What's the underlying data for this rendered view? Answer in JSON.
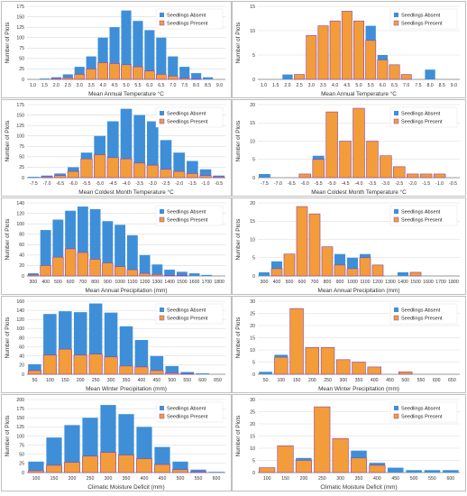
{
  "colors": {
    "absent": "#3f8fd8",
    "present": "#f39c3a",
    "present_stroke": "#8e44ad",
    "grid": "#d9d9d9"
  },
  "chart_data": [
    {
      "type": "bar",
      "ylabel": "Number of Plots",
      "xlabel": "Mean Annual Temperature °C",
      "ylim": [
        0,
        175
      ],
      "yticks": [
        0,
        25,
        50,
        75,
        100,
        125,
        150,
        175
      ],
      "legend_position": "top-right",
      "categories": [
        "1.0",
        "1.5",
        "2.0",
        "2.5",
        "3.0",
        "3.5",
        "4.0",
        "4.5",
        "5.0",
        "5.5",
        "6.0",
        "6.5",
        "7.0",
        "7.5",
        "8.0",
        "8.5",
        "9.0"
      ],
      "series": [
        {
          "name": "Seedlings Absent",
          "values": [
            0,
            2,
            5,
            12,
            30,
            55,
            100,
            125,
            165,
            140,
            118,
            100,
            55,
            30,
            15,
            5,
            0
          ]
        },
        {
          "name": "Seedlings Present",
          "values": [
            0,
            0,
            2,
            4,
            12,
            25,
            40,
            38,
            35,
            30,
            20,
            12,
            8,
            3,
            1,
            0,
            0
          ]
        }
      ]
    },
    {
      "type": "bar",
      "ylabel": "Number of Plots",
      "xlabel": "Mean Annual Temperature °C",
      "ylim": [
        0,
        15
      ],
      "yticks": [
        0,
        5,
        10,
        15
      ],
      "legend_position": "top-right",
      "categories": [
        "1.0",
        "1.5",
        "2.0",
        "2.5",
        "3.0",
        "3.5",
        "4.0",
        "4.5",
        "5.0",
        "5.5",
        "6.0",
        "6.5",
        "7.0",
        "7.5",
        "8.0",
        "8.5",
        "9.0"
      ],
      "series": [
        {
          "name": "Seedlings Absent",
          "values": [
            0,
            0,
            1,
            1,
            3,
            5,
            11,
            12,
            10,
            11,
            5,
            3,
            1,
            0,
            2,
            0,
            0
          ]
        },
        {
          "name": "Seedlings Present",
          "values": [
            0,
            0,
            0,
            1,
            9,
            11,
            12,
            14,
            12,
            8,
            4,
            3,
            1,
            0,
            0,
            0,
            0
          ]
        }
      ]
    },
    {
      "type": "bar",
      "ylabel": "Number of Plots",
      "xlabel": "Mean Coldest Month Temperature °C",
      "ylim": [
        0,
        175
      ],
      "yticks": [
        0,
        25,
        50,
        75,
        100,
        125,
        150,
        175
      ],
      "legend_position": "top-right",
      "categories": [
        "-7.5",
        "-7.0",
        "-6.5",
        "-6.0",
        "-5.5",
        "-5.0",
        "-4.5",
        "-4.0",
        "-3.5",
        "-3.0",
        "-2.5",
        "-2.0",
        "-1.5",
        "-1.0",
        "-0.5"
      ],
      "series": [
        {
          "name": "Seedlings Absent",
          "values": [
            2,
            5,
            10,
            25,
            60,
            100,
            135,
            165,
            150,
            135,
            90,
            60,
            40,
            20,
            5
          ]
        },
        {
          "name": "Seedlings Present",
          "values": [
            0,
            2,
            5,
            15,
            45,
            55,
            48,
            45,
            35,
            30,
            20,
            15,
            10,
            5,
            2
          ]
        }
      ]
    },
    {
      "type": "bar",
      "ylabel": "Number of Plots",
      "xlabel": "Mean Coldest Month Temperature °C",
      "ylim": [
        0,
        20
      ],
      "yticks": [
        0,
        5,
        10,
        15,
        20
      ],
      "legend_position": "top-right",
      "categories": [
        "-7.5",
        "-7.0",
        "-6.5",
        "-6.0",
        "-5.5",
        "-5.0",
        "-4.5",
        "-4.0",
        "-3.5",
        "-3.0",
        "-2.5",
        "-2.0",
        "-1.5",
        "-1.0",
        "-0.5"
      ],
      "series": [
        {
          "name": "Seedlings Absent",
          "values": [
            1,
            0,
            0,
            1,
            6,
            14,
            9,
            16,
            9,
            5,
            3,
            1,
            1,
            1,
            0
          ]
        },
        {
          "name": "Seedlings Present",
          "values": [
            0,
            0,
            0,
            1,
            5,
            18,
            10,
            19,
            10,
            6,
            3,
            1,
            1,
            1,
            0
          ]
        }
      ]
    },
    {
      "type": "bar",
      "ylabel": "Number of Plots",
      "xlabel": "Mean Annual Precipitation (mm)",
      "ylim": [
        0,
        140
      ],
      "yticks": [
        0,
        20,
        40,
        60,
        80,
        100,
        120,
        140
      ],
      "legend_position": "top-right",
      "categories": [
        "300",
        "400",
        "500",
        "600",
        "700",
        "800",
        "900",
        "1000",
        "1100",
        "1200",
        "1300",
        "1400",
        "1500",
        "1600",
        "1700",
        "1800"
      ],
      "series": [
        {
          "name": "Seedlings Absent",
          "values": [
            5,
            88,
            108,
            125,
            133,
            128,
            105,
            98,
            78,
            40,
            22,
            12,
            8,
            5,
            2,
            0
          ]
        },
        {
          "name": "Seedlings Present",
          "values": [
            2,
            20,
            36,
            52,
            45,
            32,
            25,
            18,
            12,
            5,
            3,
            1,
            1,
            0,
            0,
            0
          ]
        }
      ]
    },
    {
      "type": "bar",
      "ylabel": "Number of Plots",
      "xlabel": "Mean Annual Precipitation (mm)",
      "ylim": [
        0,
        20
      ],
      "yticks": [
        0,
        5,
        10,
        15,
        20
      ],
      "legend_position": "top-right",
      "categories": [
        "300",
        "400",
        "500",
        "600",
        "700",
        "800",
        "900",
        "1000",
        "1100",
        "1200",
        "1300",
        "1400",
        "1500",
        "1600",
        "1700",
        "1800"
      ],
      "series": [
        {
          "name": "Seedlings Absent",
          "values": [
            1,
            4,
            6,
            11,
            11,
            8,
            6,
            5,
            6,
            3,
            0,
            1,
            1,
            0,
            0,
            0
          ]
        },
        {
          "name": "Seedlings Present",
          "values": [
            0,
            2,
            6,
            19,
            17,
            8,
            3,
            2,
            5,
            3,
            0,
            0,
            1,
            0,
            0,
            0
          ]
        }
      ]
    },
    {
      "type": "bar",
      "ylabel": "Number of Plots",
      "xlabel": "Mean Winter Precipitation (mm)",
      "ylim": [
        0,
        160
      ],
      "yticks": [
        0,
        20,
        40,
        60,
        80,
        100,
        120,
        140,
        160
      ],
      "legend_position": "top-right",
      "categories": [
        "50",
        "100",
        "150",
        "200",
        "250",
        "300",
        "350",
        "400",
        "450",
        "500",
        "550",
        "600",
        "650"
      ],
      "series": [
        {
          "name": "Seedlings Absent",
          "values": [
            22,
            132,
            138,
            136,
            155,
            135,
            105,
            75,
            40,
            18,
            5,
            2,
            0
          ]
        },
        {
          "name": "Seedlings Present",
          "values": [
            8,
            42,
            55,
            42,
            44,
            38,
            18,
            16,
            8,
            3,
            1,
            0,
            0
          ]
        }
      ]
    },
    {
      "type": "bar",
      "ylabel": "Number of Plots",
      "xlabel": "Mean Winter Precipitation (mm)",
      "ylim": [
        0,
        30
      ],
      "yticks": [
        0,
        5,
        10,
        15,
        20,
        25,
        30
      ],
      "legend_position": "top-right",
      "categories": [
        "50",
        "100",
        "150",
        "200",
        "250",
        "300",
        "350",
        "400",
        "450",
        "500",
        "550",
        "600",
        "650"
      ],
      "series": [
        {
          "name": "Seedlings Absent",
          "values": [
            1,
            8,
            10,
            10,
            5,
            4,
            3,
            2,
            0,
            1,
            0,
            0,
            0
          ]
        },
        {
          "name": "Seedlings Present",
          "values": [
            0,
            7,
            27,
            11,
            11,
            6,
            5,
            3,
            0,
            1,
            0,
            0,
            0
          ]
        }
      ]
    },
    {
      "type": "bar",
      "ylabel": "Number of Plots",
      "xlabel": "Climatic Moisture Deficit (mm)",
      "ylim": [
        0,
        200
      ],
      "yticks": [
        0,
        25,
        50,
        75,
        100,
        125,
        150,
        175,
        200
      ],
      "legend_position": "top-right",
      "categories": [
        "100",
        "150",
        "200",
        "250",
        "300",
        "350",
        "400",
        "450",
        "500",
        "550",
        "600"
      ],
      "series": [
        {
          "name": "Seedlings Absent",
          "values": [
            30,
            96,
            130,
            150,
            185,
            160,
            125,
            70,
            30,
            8,
            2
          ]
        },
        {
          "name": "Seedlings Present",
          "values": [
            5,
            20,
            28,
            45,
            55,
            48,
            38,
            22,
            8,
            2,
            0
          ]
        }
      ]
    },
    {
      "type": "bar",
      "ylabel": "Number of Plots",
      "xlabel": "Climatic Moisture Deficit (mm)",
      "ylim": [
        0,
        30
      ],
      "yticks": [
        0,
        5,
        10,
        15,
        20,
        25,
        30
      ],
      "legend_position": "top-right",
      "categories": [
        "100",
        "150",
        "200",
        "250",
        "300",
        "350",
        "400",
        "450",
        "500",
        "550",
        "600"
      ],
      "series": [
        {
          "name": "Seedlings Absent",
          "values": [
            1,
            5,
            6,
            13,
            10,
            9,
            4,
            2,
            1,
            1,
            1
          ]
        },
        {
          "name": "Seedlings Present",
          "values": [
            2,
            11,
            5,
            27,
            14,
            6,
            3,
            0,
            0,
            0,
            0
          ]
        }
      ]
    }
  ]
}
